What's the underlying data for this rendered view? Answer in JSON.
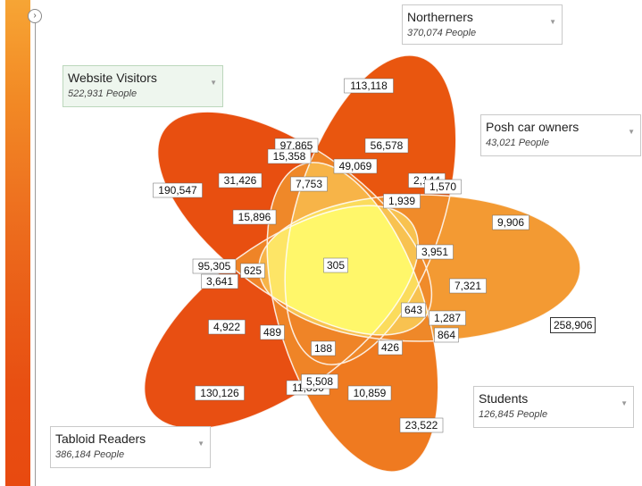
{
  "sets": [
    {
      "key": "northerners",
      "name": "Northerners",
      "count": "370,074 People",
      "selected": false
    },
    {
      "key": "website",
      "name": "Website Visitors",
      "count": "522,931 People",
      "selected": true
    },
    {
      "key": "posh",
      "name": "Posh car owners",
      "count": "43,021 People",
      "selected": false
    },
    {
      "key": "students",
      "name": "Students",
      "count": "126,845 People",
      "selected": false
    },
    {
      "key": "tabloid",
      "name": "Tabloid Readers",
      "count": "386,184 People",
      "selected": false
    }
  ],
  "regions": [
    "113,118",
    "97,865",
    "56,578",
    "15,358",
    "49,069",
    "190,547",
    "31,426",
    "7,753",
    "2,144",
    "1,570",
    "1,939",
    "9,906",
    "15,896",
    "95,305",
    "625",
    "305",
    "3,951",
    "3,641",
    "7,321",
    "643",
    "1,287",
    "4,922",
    "489",
    "864",
    "188",
    "426",
    "130,126",
    "11,890",
    "5,508",
    "10,859",
    "23,522"
  ],
  "outside_count": "258,906",
  "colors": {
    "outer": "#e8520f",
    "mid": "#f5962e",
    "inner": "#fbd35a",
    "core": "#fff76a"
  }
}
